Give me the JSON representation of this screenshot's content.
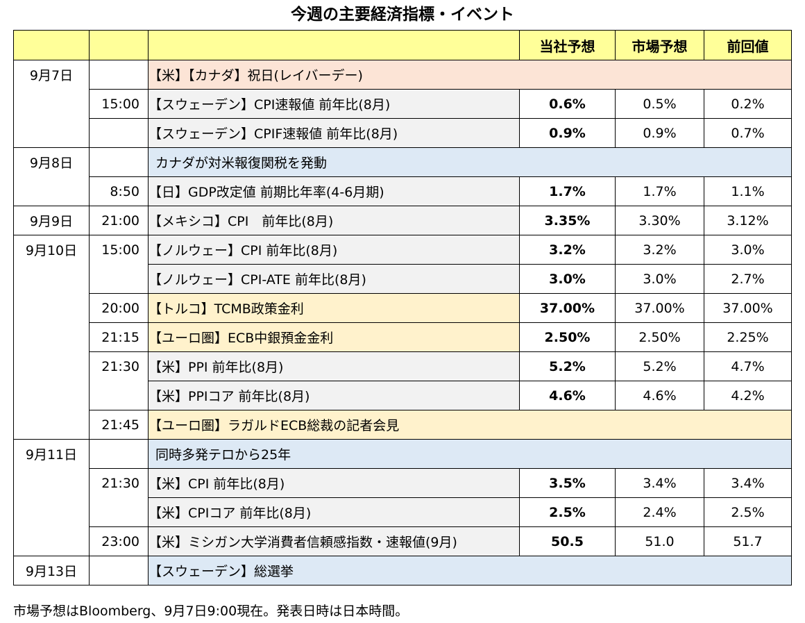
{
  "title": "今週の主要経済指標・イベント",
  "header": {
    "forecast": "当社予想",
    "consensus": "市場予想",
    "previous": "前回値"
  },
  "rows": [
    {
      "date": "9月7日",
      "time": "",
      "event": "【米】【カナダ】祝日(レイバーデー)",
      "forecast": "",
      "consensus": "",
      "previous": ""
    },
    {
      "date": "",
      "time": "15:00",
      "event": "【スウェーデン】CPI速報値 前年比(8月)",
      "forecast": "0.6%",
      "consensus": "0.5%",
      "previous": "0.2%"
    },
    {
      "date": "",
      "time": "",
      "event": "【スウェーデン】CPIF速報値 前年比(8月)",
      "forecast": "0.9%",
      "consensus": "0.9%",
      "previous": "0.7%"
    },
    {
      "date": "9月8日",
      "time": "",
      "event": "カナダが対米報復関税を発動",
      "forecast": "",
      "consensus": "",
      "previous": ""
    },
    {
      "date": "",
      "time": "8:50",
      "event": "【日】GDP改定値 前期比年率(4-6月期)",
      "forecast": "1.7%",
      "consensus": "1.7%",
      "previous": "1.1%"
    },
    {
      "date": "9月9日",
      "time": "21:00",
      "event": "【メキシコ】CPI　前年比(8月)",
      "forecast": "3.35%",
      "consensus": "3.30%",
      "previous": "3.12%"
    },
    {
      "date": "9月10日",
      "time": "15:00",
      "event": "【ノルウェー】CPI 前年比(8月)",
      "forecast": "3.2%",
      "consensus": "3.2%",
      "previous": "3.0%"
    },
    {
      "date": "",
      "time": "",
      "event": "【ノルウェー】CPI-ATE 前年比(8月)",
      "forecast": "3.0%",
      "consensus": "3.0%",
      "previous": "2.7%"
    },
    {
      "date": "",
      "time": "20:00",
      "event": "【トルコ】TCMB政策金利",
      "forecast": "37.00%",
      "consensus": "37.00%",
      "previous": "37.00%"
    },
    {
      "date": "",
      "time": "21:15",
      "event": "【ユーロ圏】ECB中銀預金金利",
      "forecast": "2.50%",
      "consensus": "2.50%",
      "previous": "2.25%"
    },
    {
      "date": "",
      "time": "21:30",
      "event": "【米】PPI 前年比(8月)",
      "forecast": "5.2%",
      "consensus": "5.2%",
      "previous": "4.7%"
    },
    {
      "date": "",
      "time": "",
      "event": "【米】PPIコア 前年比(8月)",
      "forecast": "4.6%",
      "consensus": "4.6%",
      "previous": "4.2%"
    },
    {
      "date": "",
      "time": "21:45",
      "event": "【ユーロ圏】ラガルドECB総裁の記者会見",
      "forecast": "",
      "consensus": "",
      "previous": ""
    },
    {
      "date": "9月11日",
      "time": "",
      "event": "同時多発テロから25年",
      "forecast": "",
      "consensus": "",
      "previous": ""
    },
    {
      "date": "",
      "time": "21:30",
      "event": "【米】CPI 前年比(8月)",
      "forecast": "3.5%",
      "consensus": "3.4%",
      "previous": "3.4%"
    },
    {
      "date": "",
      "time": "",
      "event": "【米】CPIコア 前年比(8月)",
      "forecast": "2.5%",
      "consensus": "2.4%",
      "previous": "2.5%"
    },
    {
      "date": "",
      "time": "23:00",
      "event": "【米】ミシガン大学消費者信頼感指数・速報値(9月)",
      "forecast": "50.5",
      "consensus": "51.0",
      "previous": "51.7"
    },
    {
      "date": "9月13日",
      "time": "",
      "event": "【スウェーデン】総選挙",
      "forecast": "",
      "consensus": "",
      "previous": ""
    }
  ],
  "footnote": "市場予想はBloomberg、9月7日9:00現在。発表日時は日本時間。",
  "colors": {
    "header_bg": "#ffff99",
    "holiday_bg": "#fce4d6",
    "event_bg": "#dde9f5",
    "policy_bg": "#fff2cc",
    "data_bg": "#f2f2f2"
  }
}
